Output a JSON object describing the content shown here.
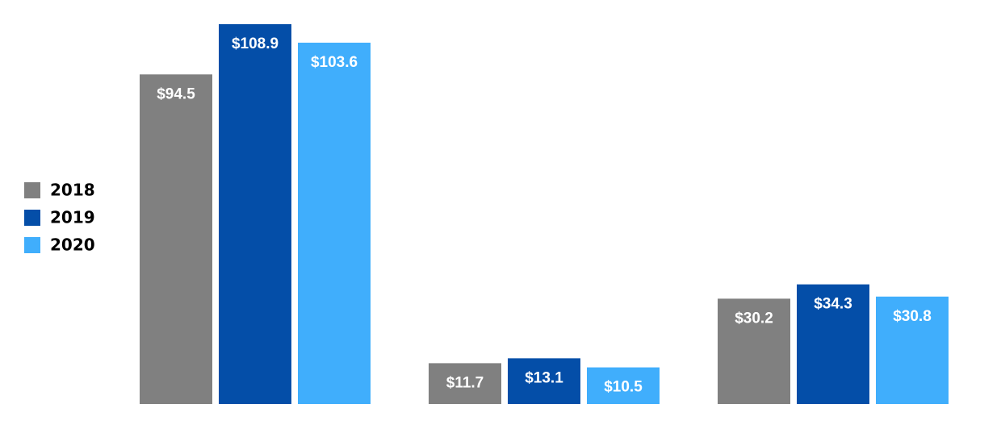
{
  "chart_data": {
    "type": "bar",
    "categories": [
      null,
      null,
      null
    ],
    "series": [
      {
        "name": "2018",
        "color": "#808080",
        "values": [
          94.5,
          11.7,
          30.2
        ],
        "value_labels": [
          "$94.5",
          "$11.7",
          "$30.2"
        ]
      },
      {
        "name": "2019",
        "color": "#044ea8",
        "values": [
          108.9,
          13.1,
          34.3
        ],
        "value_labels": [
          "$108.9",
          "$13.1",
          "$34.3"
        ]
      },
      {
        "name": "2020",
        "color": "#40aefc",
        "values": [
          103.6,
          10.5,
          30.8
        ],
        "value_labels": [
          "$103.6",
          "$10.5",
          "$30.8"
        ]
      }
    ],
    "legend": "left"
  }
}
